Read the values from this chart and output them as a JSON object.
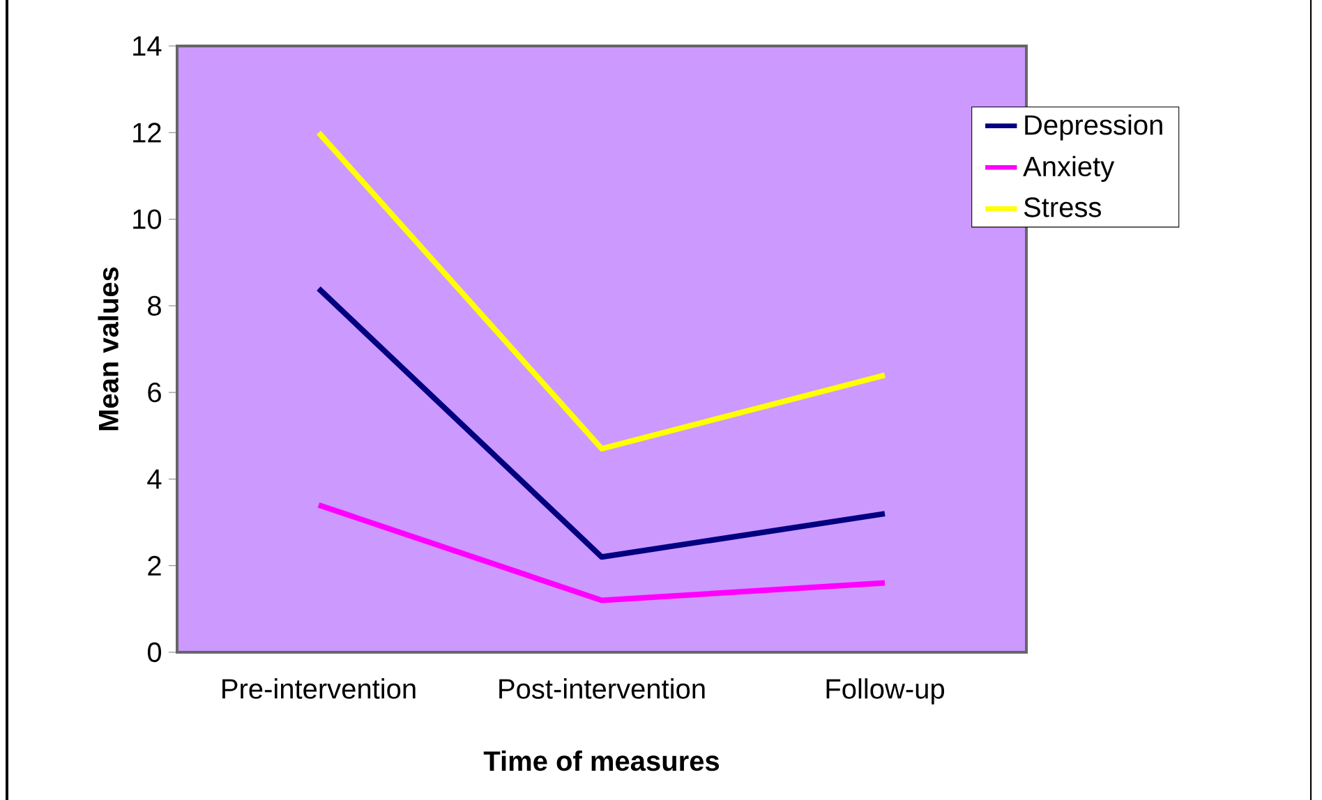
{
  "chart_data": {
    "type": "line",
    "xlabel": "Time of measures",
    "ylabel": "Mean values",
    "categories": [
      "Pre-intervention",
      "Post-intervention",
      "Follow-up"
    ],
    "series": [
      {
        "name": "Depression",
        "color": "#000080",
        "values": [
          8.4,
          2.2,
          3.2
        ]
      },
      {
        "name": "Anxiety",
        "color": "#ff00ff",
        "values": [
          3.4,
          1.2,
          1.6
        ]
      },
      {
        "name": "Stress",
        "color": "#ffff00",
        "values": [
          12,
          4.7,
          6.4
        ]
      }
    ],
    "ylim": [
      0,
      14
    ],
    "yticks": [
      0,
      2,
      4,
      6,
      8,
      10,
      12,
      14
    ],
    "grid": false,
    "legend": "top right",
    "marker": "none",
    "line_style": "solid"
  }
}
